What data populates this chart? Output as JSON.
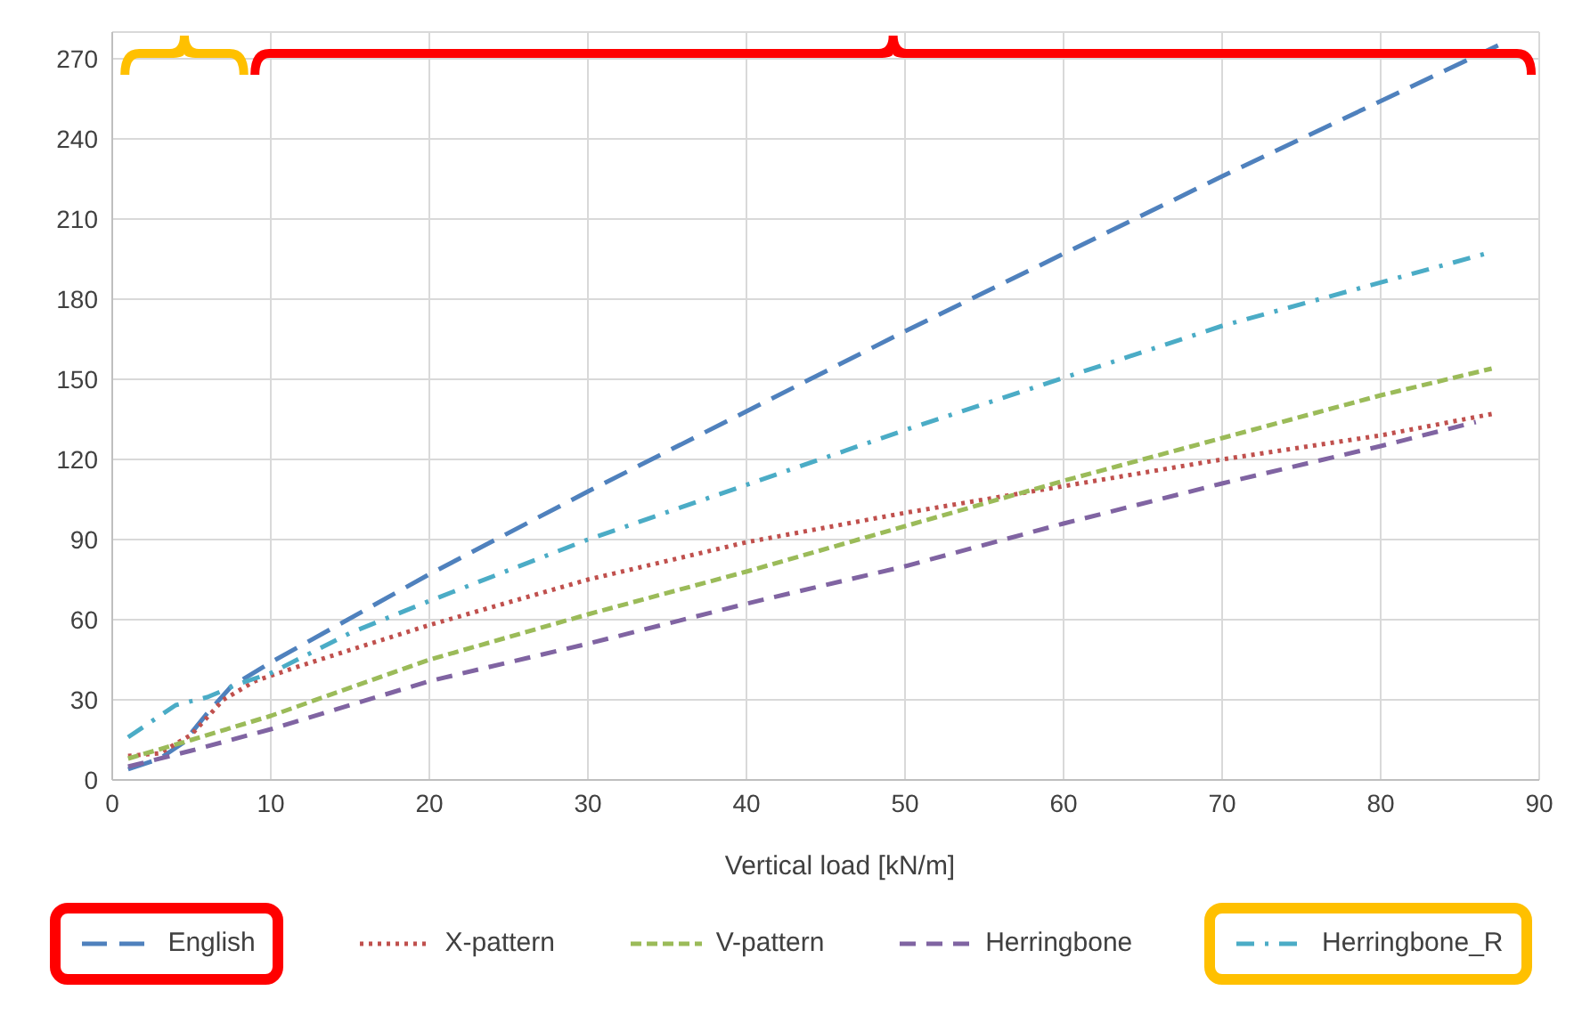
{
  "chart_data": {
    "type": "line",
    "xlabel": "Vertical load [kN/m]",
    "xlim": [
      0,
      90
    ],
    "xticks": [
      0,
      10,
      20,
      30,
      40,
      50,
      60,
      70,
      80,
      90
    ],
    "ylim": [
      0,
      280
    ],
    "yticks": [
      0,
      30,
      60,
      90,
      120,
      150,
      180,
      210,
      240,
      270
    ],
    "grid": true,
    "legend": "bottom",
    "marker": "none",
    "series": [
      {
        "name": "English",
        "color": "#4f81bd",
        "line_style": "dashed",
        "x": [
          1,
          3,
          4.5,
          6,
          7.5,
          10,
          20,
          30,
          50,
          70,
          87.4
        ],
        "values": [
          4,
          8,
          14,
          25,
          35,
          44,
          77,
          108,
          168,
          226,
          275
        ]
      },
      {
        "name": "X-pattern",
        "color": "#c0504d",
        "line_style": "dotted",
        "x": [
          1,
          3,
          5,
          7,
          9,
          12,
          20,
          30,
          40,
          50,
          60,
          70,
          80,
          87
        ],
        "values": [
          9,
          10,
          17,
          30,
          37,
          43,
          58,
          75,
          89,
          100,
          110,
          120,
          129,
          137
        ]
      },
      {
        "name": "V-pattern",
        "color": "#9bbb59",
        "line_style": "dashed",
        "x": [
          1,
          5,
          10,
          20,
          30,
          40,
          50,
          60,
          70,
          80,
          87
        ],
        "values": [
          8,
          15,
          24,
          45,
          62,
          78,
          95,
          112,
          128,
          144,
          154
        ]
      },
      {
        "name": "Herringbone",
        "color": "#8064a2",
        "line_style": "dashed",
        "x": [
          1,
          5,
          10,
          20,
          30,
          40,
          50,
          60,
          70,
          80,
          86
        ],
        "values": [
          5,
          11,
          19,
          37,
          51,
          66,
          80,
          96,
          111,
          125,
          134
        ]
      },
      {
        "name": "Herringbone_R",
        "color": "#4bacc6",
        "line_style": "dashed",
        "x": [
          1,
          4,
          6,
          8,
          10,
          15,
          20,
          30,
          50,
          70,
          86.6
        ],
        "values": [
          16,
          28,
          31,
          36,
          40,
          55,
          67,
          90,
          131,
          170,
          197
        ]
      }
    ]
  }
}
